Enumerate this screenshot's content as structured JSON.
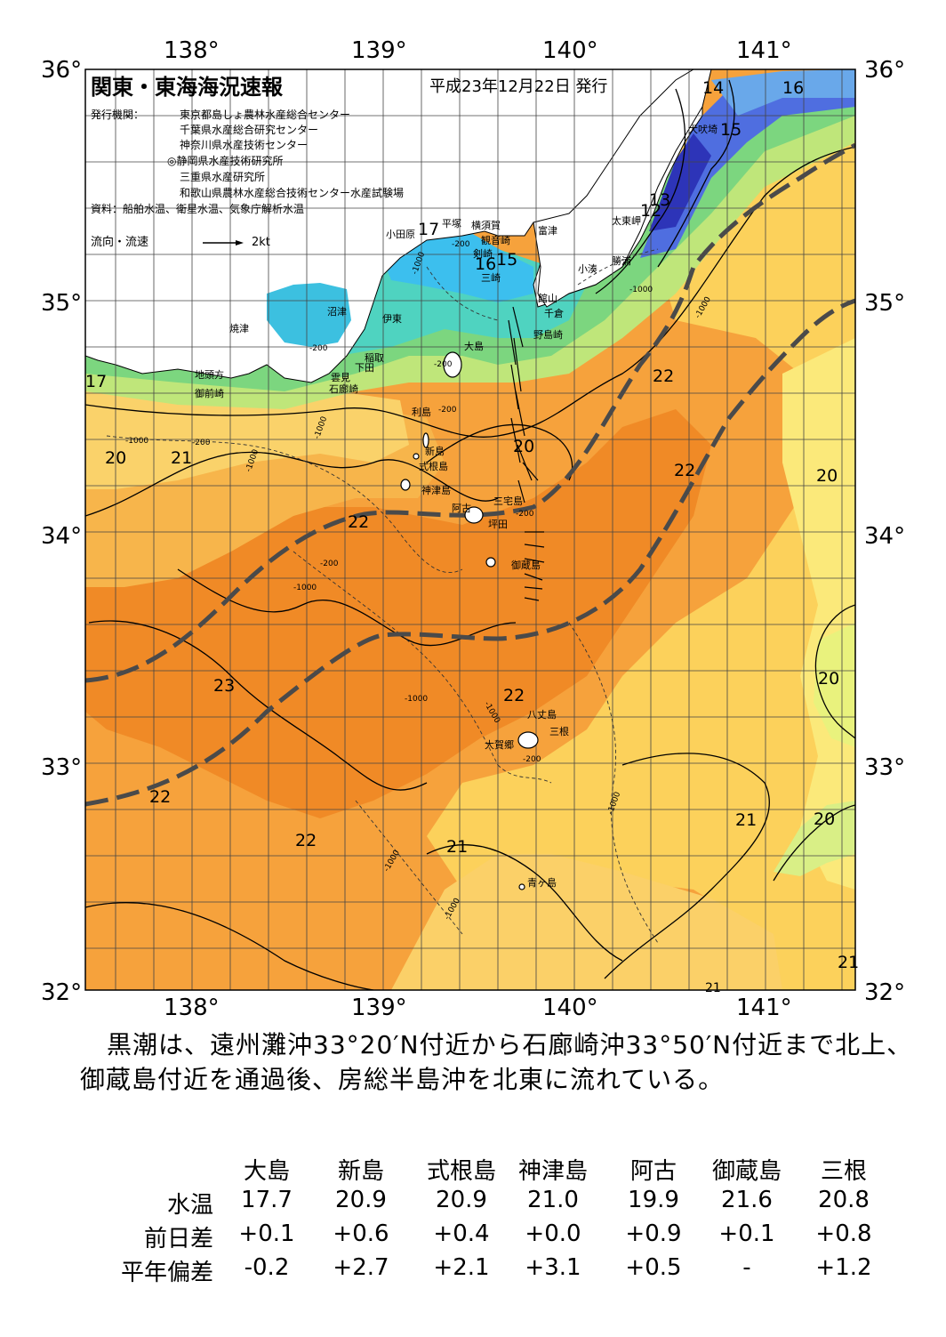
{
  "header": {
    "title": "関東・東海海況速報",
    "issue_date": "平成23年12月22日 発行",
    "issuer_label": "発行機関：",
    "issuers": [
      "東京都島しょ農林水産総合センター",
      "千葉県水産総合研究センター",
      "神奈川県水産技術センター",
      "◎静岡県水産技術研究所",
      "三重県水産研究所",
      "和歌山県農林水産総合技術センター水産試験場"
    ],
    "source": "資料：船舶水温、衛星水温、気象庁解析水温",
    "legend_label": "流向・流速",
    "legend_scale": "2kt"
  },
  "axes": {
    "lon_labels": [
      "138°",
      "139°",
      "140°",
      "141°"
    ],
    "lat_labels": [
      "36°",
      "35°",
      "34°",
      "33°",
      "32°"
    ]
  },
  "map": {
    "place_names": [
      "小田原",
      "平塚",
      "横須賀",
      "観音崎",
      "剣崎",
      "三崎",
      "富津",
      "館山",
      "千倉",
      "野島崎",
      "小湊",
      "勝浦",
      "太東岬",
      "犬吠埼",
      "焼津",
      "沼津",
      "伊東",
      "稲取",
      "下田",
      "雲見",
      "石廊崎",
      "地頭方",
      "御前崎",
      "大島",
      "利島",
      "新島",
      "式根島",
      "神津島",
      "三宅島",
      "阿古",
      "坪田",
      "御蔵島",
      "八丈島",
      "三根",
      "大賀郷",
      "青ヶ島"
    ],
    "isotherm_labels": [
      "14",
      "16",
      "15",
      "13",
      "12",
      "17",
      "16",
      "15",
      "17",
      "22",
      "20",
      "21",
      "20",
      "22",
      "20",
      "22",
      "23",
      "22",
      "20",
      "22",
      "22",
      "21",
      "21",
      "20",
      "21",
      "21"
    ],
    "depth_labels": [
      "-200",
      "-1000",
      "-200",
      "-200",
      "-1000",
      "-200",
      "-1000",
      "-1000",
      "-200",
      "-1000",
      "-200",
      "-1000",
      "-1000",
      "-200",
      "-1000",
      "-200",
      "-1000",
      "-1000",
      "-1000",
      "-1000"
    ]
  },
  "summary": {
    "line1": "黒潮は、遠州灘沖33°20′N付近から石廊崎沖33°50′N付近まで北上、",
    "line2": "御蔵島付近を通過後、房総半島沖を北東に流れている。"
  },
  "table": {
    "columns": [
      "大島",
      "新島",
      "式根島",
      "神津島",
      "阿古",
      "御蔵島",
      "三根"
    ],
    "rows": [
      {
        "label": "水温",
        "values": [
          "17.7",
          "20.9",
          "20.9",
          "21.0",
          "19.9",
          "21.6",
          "20.8"
        ]
      },
      {
        "label": "前日差",
        "values": [
          "+0.1",
          "+0.6",
          "+0.4",
          "+0.0",
          "+0.9",
          "+0.1",
          "+0.8"
        ]
      },
      {
        "label": "平年偏差",
        "values": [
          "-0.2",
          "+2.7",
          "+2.1",
          "+3.1",
          "+0.5",
          "-",
          "+1.2"
        ]
      }
    ]
  }
}
